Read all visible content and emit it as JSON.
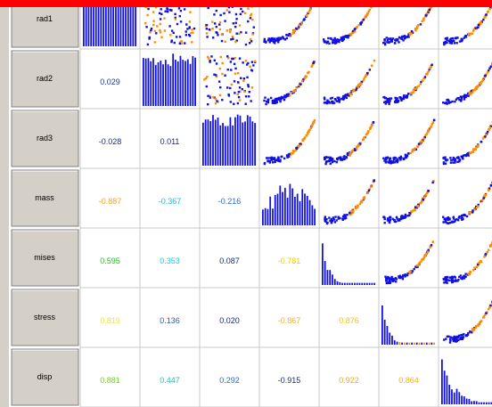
{
  "matrix": {
    "rows": [
      {
        "label": "rad1",
        "correlations": []
      },
      {
        "label": "rad2",
        "correlations": [
          {
            "text": "0.029",
            "color": "#1b3a9c"
          }
        ]
      },
      {
        "label": "rad3",
        "correlations": [
          {
            "text": "-0.028",
            "color": "#1b2a80"
          },
          {
            "text": "0.011",
            "color": "#1b2a80"
          }
        ]
      },
      {
        "label": "mass",
        "correlations": [
          {
            "text": "-0.887",
            "color": "#f5a623"
          },
          {
            "text": "-0.367",
            "color": "#22b8d8"
          },
          {
            "text": "-0.216",
            "color": "#2a6ad0"
          }
        ]
      },
      {
        "label": "mises",
        "correlations": [
          {
            "text": "0.595",
            "color": "#22c02a"
          },
          {
            "text": "0.353",
            "color": "#22c8d8"
          },
          {
            "text": "0.087",
            "color": "#1b2a80"
          },
          {
            "text": "-0.781",
            "color": "#f0d000"
          }
        ]
      },
      {
        "label": "stress",
        "correlations": [
          {
            "text": "0.819",
            "color": "#f0e040"
          },
          {
            "text": "0.136",
            "color": "#2a5ac8"
          },
          {
            "text": "0.020",
            "color": "#1b2a80"
          },
          {
            "text": "-0.867",
            "color": "#f5b030"
          },
          {
            "text": "0.876",
            "color": "#f0c020"
          }
        ]
      },
      {
        "label": "disp",
        "correlations": [
          {
            "text": "0.881",
            "color": "#70d020"
          },
          {
            "text": "0.447",
            "color": "#30c0b0"
          },
          {
            "text": "0.292",
            "color": "#2a6ad0"
          },
          {
            "text": "-0.915",
            "color": "#1b2a80"
          },
          {
            "text": "0.922",
            "color": "#f5a623"
          },
          {
            "text": "0.864",
            "color": "#f0b020"
          }
        ]
      }
    ]
  }
}
